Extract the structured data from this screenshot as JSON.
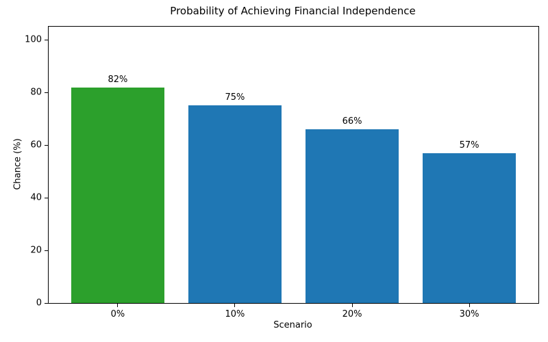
{
  "chart_data": {
    "type": "bar",
    "title": "Probability of Achieving Financial Independence",
    "xlabel": "Scenario",
    "ylabel": "Chance (%)",
    "categories": [
      "0%",
      "10%",
      "20%",
      "30%"
    ],
    "values": [
      82,
      75,
      66,
      57
    ],
    "bar_labels": [
      "82%",
      "75%",
      "66%",
      "57%"
    ],
    "bar_colors": [
      "#2ca02c",
      "#1f77b4",
      "#1f77b4",
      "#1f77b4"
    ],
    "yticks": [
      0,
      20,
      40,
      60,
      80,
      100
    ],
    "ylim": [
      0,
      105
    ],
    "grid": false,
    "legend_position": "none",
    "background_color": "#ffffff",
    "text_color": "#000000"
  }
}
